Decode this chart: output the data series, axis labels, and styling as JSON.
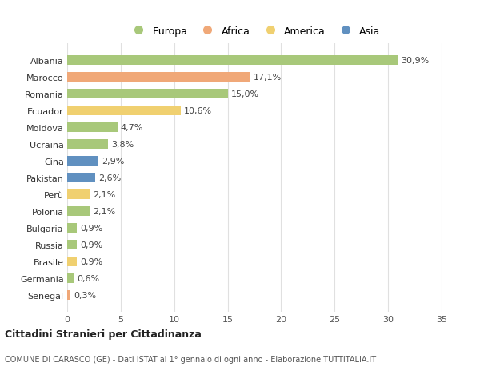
{
  "countries": [
    "Albania",
    "Marocco",
    "Romania",
    "Ecuador",
    "Moldova",
    "Ucraina",
    "Cina",
    "Pakistan",
    "Perù",
    "Polonia",
    "Bulgaria",
    "Russia",
    "Brasile",
    "Germania",
    "Senegal"
  ],
  "values": [
    30.9,
    17.1,
    15.0,
    10.6,
    4.7,
    3.8,
    2.9,
    2.6,
    2.1,
    2.1,
    0.9,
    0.9,
    0.9,
    0.6,
    0.3
  ],
  "labels": [
    "30,9%",
    "17,1%",
    "15,0%",
    "10,6%",
    "4,7%",
    "3,8%",
    "2,9%",
    "2,6%",
    "2,1%",
    "2,1%",
    "0,9%",
    "0,9%",
    "0,9%",
    "0,6%",
    "0,3%"
  ],
  "colors": [
    "#a8c87a",
    "#f0a878",
    "#a8c87a",
    "#f0d070",
    "#a8c87a",
    "#a8c87a",
    "#6090c0",
    "#6090c0",
    "#f0d070",
    "#a8c87a",
    "#a8c87a",
    "#a8c87a",
    "#f0d070",
    "#a8c87a",
    "#f0a878"
  ],
  "legend_labels": [
    "Europa",
    "Africa",
    "America",
    "Asia"
  ],
  "legend_colors": [
    "#a8c87a",
    "#f0a878",
    "#f0d070",
    "#6090c0"
  ],
  "title": "Cittadini Stranieri per Cittadinanza",
  "subtitle": "COMUNE DI CARASCO (GE) - Dati ISTAT al 1° gennaio di ogni anno - Elaborazione TUTTITALIA.IT",
  "xlim": [
    0,
    35
  ],
  "xticks": [
    0,
    5,
    10,
    15,
    20,
    25,
    30,
    35
  ],
  "bg_color": "#ffffff",
  "grid_color": "#e0e0e0",
  "label_fontsize": 8,
  "bar_label_fontsize": 8,
  "bar_height": 0.55
}
